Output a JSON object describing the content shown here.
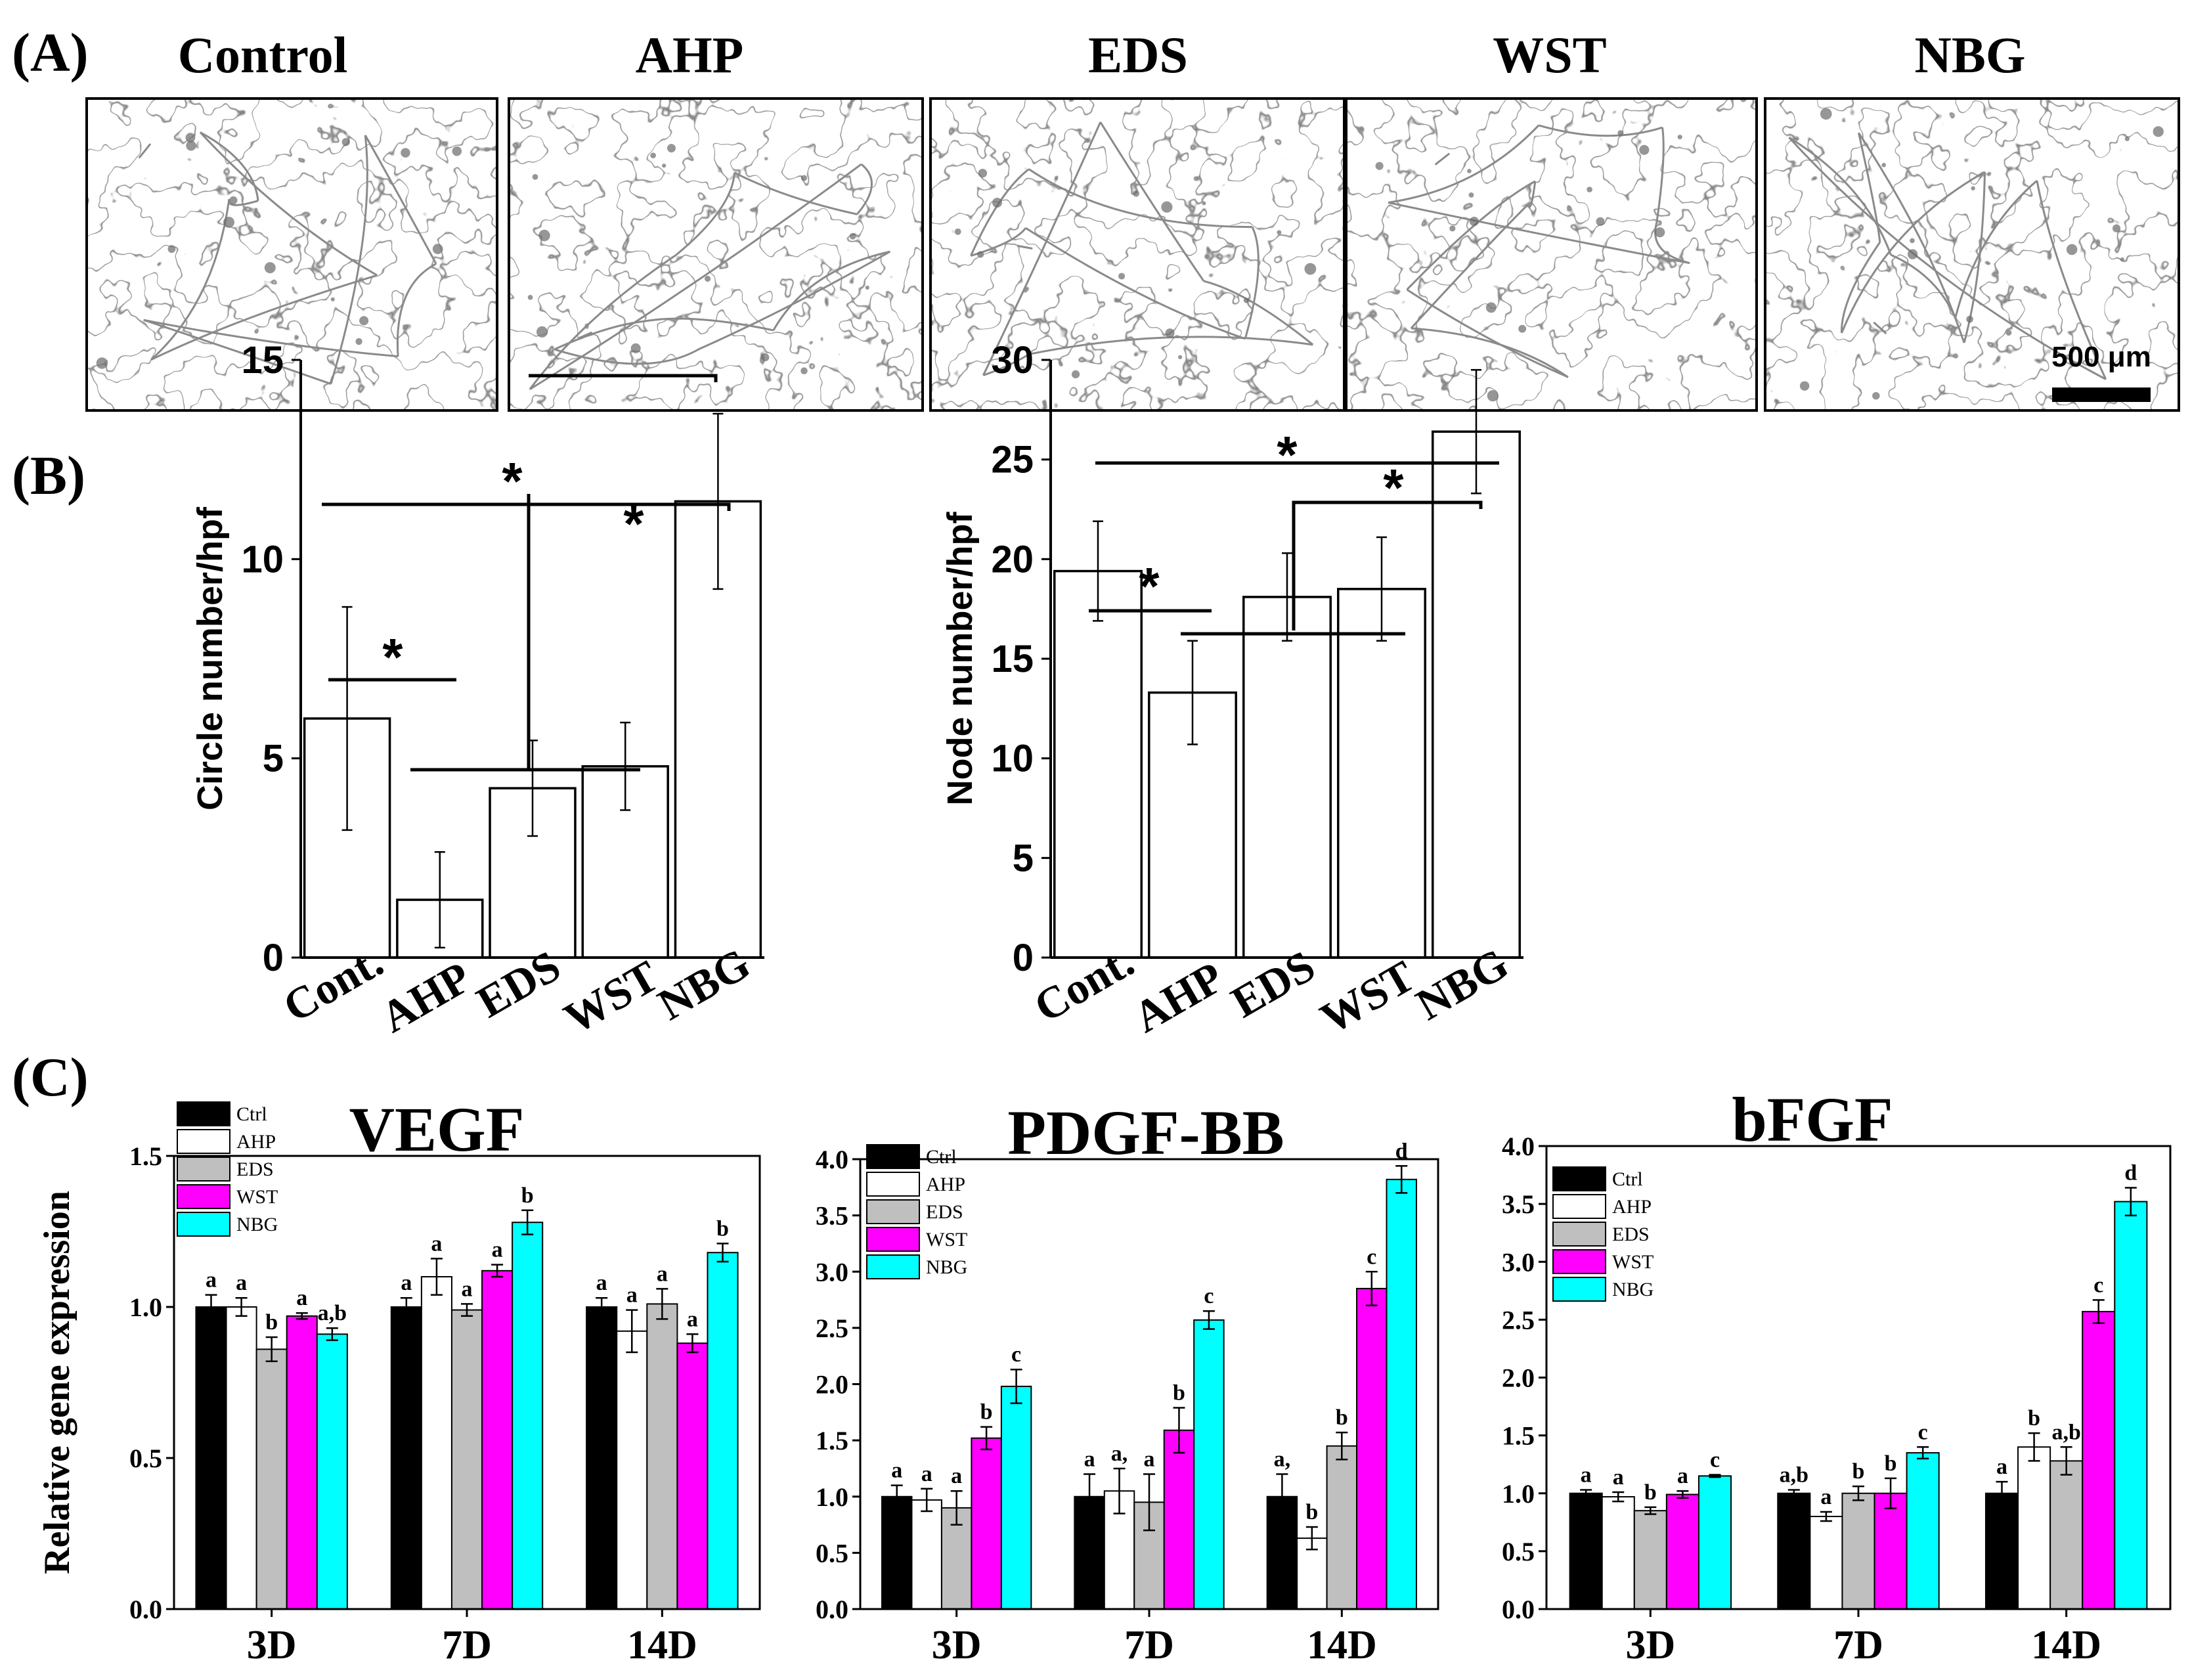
{
  "panel_labels": {
    "a": "(A)",
    "b": "(B)",
    "c": "(C)"
  },
  "panel_a": {
    "groups": [
      "Control",
      "AHP",
      "EDS",
      "WST",
      "NBG"
    ],
    "scale_bar": "500 μm"
  },
  "colors": {
    "Ctrl": "#000000",
    "AHP": "#ffffff",
    "EDS": "#bfbfbf",
    "WST": "#ff00ff",
    "NBG": "#00ffff"
  },
  "chart_data": [
    {
      "id": "circle",
      "type": "bar",
      "ylabel": "Circle number/hpf",
      "categories": [
        "Cont.",
        "AHP",
        "EDS",
        "WST",
        "NBG"
      ],
      "values": [
        6.0,
        1.45,
        4.25,
        4.8,
        11.45
      ],
      "errors": [
        2.8,
        1.2,
        1.2,
        1.1,
        2.2
      ],
      "ylim": [
        0,
        15
      ],
      "yticks": [
        "0",
        "5",
        "10",
        "15"
      ],
      "significance": [
        "*",
        "*",
        "*"
      ]
    },
    {
      "id": "node",
      "type": "bar",
      "ylabel": "Node number/hpf",
      "categories": [
        "Cont.",
        "AHP",
        "EDS",
        "WST",
        "NBG"
      ],
      "values": [
        19.4,
        13.3,
        18.1,
        18.5,
        26.4
      ],
      "errors": [
        2.5,
        2.6,
        2.2,
        2.6,
        3.1
      ],
      "ylim": [
        0,
        30
      ],
      "yticks": [
        "0",
        "5",
        "10",
        "15",
        "20",
        "25",
        "30"
      ],
      "significance": [
        "*",
        "*",
        "*"
      ]
    },
    {
      "id": "vegf",
      "type": "bar",
      "title": "VEGF",
      "ylabel": "Relative gene expression",
      "categories": [
        "3D",
        "7D",
        "14D"
      ],
      "ylim": [
        0,
        1.5
      ],
      "yticks": [
        "0.0",
        "0.5",
        "1.0",
        "1.5"
      ],
      "series": [
        {
          "name": "Ctrl",
          "values": [
            1.0,
            1.0,
            1.0
          ],
          "errors": [
            0.04,
            0.03,
            0.03
          ],
          "letters": [
            "a",
            "a",
            "a"
          ]
        },
        {
          "name": "AHP",
          "values": [
            1.0,
            1.1,
            0.92
          ],
          "errors": [
            0.03,
            0.06,
            0.07
          ],
          "letters": [
            "a",
            "a",
            "a"
          ]
        },
        {
          "name": "EDS",
          "values": [
            0.86,
            0.99,
            1.01
          ],
          "errors": [
            0.04,
            0.02,
            0.05
          ],
          "letters": [
            "b",
            "a",
            "a"
          ]
        },
        {
          "name": "WST",
          "values": [
            0.97,
            1.12,
            0.88
          ],
          "errors": [
            0.01,
            0.02,
            0.03
          ],
          "letters": [
            "a",
            "a",
            "a"
          ]
        },
        {
          "name": "NBG",
          "values": [
            0.91,
            1.28,
            1.18
          ],
          "errors": [
            0.02,
            0.04,
            0.03
          ],
          "letters": [
            "a,b",
            "b",
            "b"
          ]
        }
      ]
    },
    {
      "id": "pdgf",
      "type": "bar",
      "title": "PDGF-BB",
      "categories": [
        "3D",
        "7D",
        "14D"
      ],
      "ylim": [
        0,
        4.0
      ],
      "yticks": [
        "0.0",
        "0.5",
        "1.0",
        "1.5",
        "2.0",
        "2.5",
        "3.0",
        "3.5",
        "4.0"
      ],
      "series": [
        {
          "name": "Ctrl",
          "values": [
            1.0,
            1.0,
            1.0
          ],
          "errors": [
            0.1,
            0.2,
            0.2
          ],
          "letters": [
            "a",
            "a",
            "a,"
          ]
        },
        {
          "name": "AHP",
          "values": [
            0.97,
            1.05,
            0.63
          ],
          "errors": [
            0.1,
            0.2,
            0.1
          ],
          "letters": [
            "a",
            "a,",
            "b"
          ]
        },
        {
          "name": "EDS",
          "values": [
            0.9,
            0.95,
            1.45
          ],
          "errors": [
            0.15,
            0.25,
            0.12
          ],
          "letters": [
            "a",
            "a",
            "b"
          ]
        },
        {
          "name": "WST",
          "values": [
            1.52,
            1.59,
            2.85
          ],
          "errors": [
            0.1,
            0.2,
            0.15
          ],
          "letters": [
            "b",
            "b",
            "c"
          ]
        },
        {
          "name": "NBG",
          "values": [
            1.98,
            2.57,
            3.82
          ],
          "errors": [
            0.15,
            0.08,
            0.12
          ],
          "letters": [
            "c",
            "c",
            "d"
          ]
        }
      ]
    },
    {
      "id": "bfgf",
      "type": "bar",
      "title": "bFGF",
      "categories": [
        "3D",
        "7D",
        "14D"
      ],
      "ylim": [
        0,
        4.0
      ],
      "yticks": [
        "0.0",
        "0.5",
        "1.0",
        "1.5",
        "2.0",
        "2.5",
        "3.0",
        "3.5",
        "4.0"
      ],
      "series": [
        {
          "name": "Ctrl",
          "values": [
            1.0,
            1.0,
            1.0
          ],
          "errors": [
            0.03,
            0.03,
            0.1
          ],
          "letters": [
            "a",
            "a,b",
            "a"
          ]
        },
        {
          "name": "AHP",
          "values": [
            0.97,
            0.8,
            1.4
          ],
          "errors": [
            0.04,
            0.04,
            0.12
          ],
          "letters": [
            "a",
            "a",
            "b"
          ]
        },
        {
          "name": "EDS",
          "values": [
            0.85,
            1.0,
            1.28
          ],
          "errors": [
            0.03,
            0.06,
            0.12
          ],
          "letters": [
            "b",
            "b",
            "a,b"
          ]
        },
        {
          "name": "WST",
          "values": [
            0.99,
            1.0,
            2.57
          ],
          "errors": [
            0.03,
            0.13,
            0.1
          ],
          "letters": [
            "a",
            "b",
            "c"
          ]
        },
        {
          "name": "NBG",
          "values": [
            1.15,
            1.35,
            3.52
          ],
          "errors": [
            0.01,
            0.05,
            0.12
          ],
          "letters": [
            "c",
            "c",
            "d"
          ]
        }
      ]
    }
  ]
}
